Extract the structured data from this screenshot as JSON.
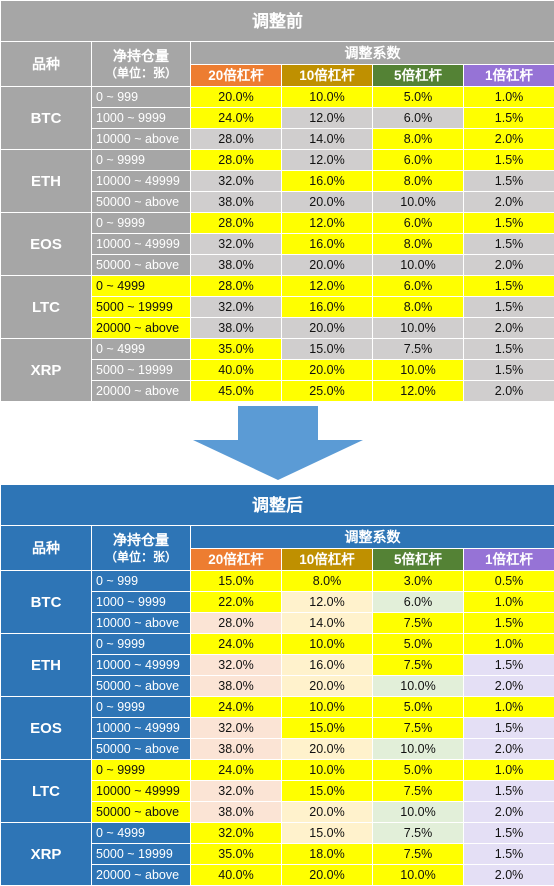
{
  "colors": {
    "before_header_bg": "#a6a6a6",
    "after_header_bg": "#2e75b6",
    "lev20": "#ed7d31",
    "lev10": "#bf9000",
    "lev5": "#548235",
    "lev1": "#9673d6",
    "yellow": "#ffff00",
    "grey_cell": "#d0cece",
    "peach": "#fbe4d5",
    "cream": "#fff2cc",
    "mint": "#e2efd9",
    "lavender": "#e4dff5",
    "arrow": "#5b9bd5"
  },
  "before": {
    "title": "调整前",
    "col_variety": "品种",
    "col_position": "净持仓量",
    "col_position_unit": "（单位：张）",
    "col_coef": "调整系数",
    "levels": [
      "20倍杠杆",
      "10倍杠杆",
      "5倍杠杆",
      "1倍杠杆"
    ],
    "groups": [
      {
        "coin": "BTC",
        "rows": [
          {
            "range": "0 ~ 999",
            "values": [
              "20.0%",
              "10.0%",
              "5.0%",
              "1.0%"
            ]
          },
          {
            "range": "1000 ~ 9999",
            "values": [
              "24.0%",
              "12.0%",
              "6.0%",
              "1.5%"
            ]
          },
          {
            "range": "10000 ~ above",
            "values": [
              "28.0%",
              "14.0%",
              "8.0%",
              "2.0%"
            ]
          }
        ]
      },
      {
        "coin": "ETH",
        "rows": [
          {
            "range": "0 ~ 9999",
            "values": [
              "28.0%",
              "12.0%",
              "6.0%",
              "1.5%"
            ]
          },
          {
            "range": "10000 ~ 49999",
            "values": [
              "32.0%",
              "16.0%",
              "8.0%",
              "1.5%"
            ]
          },
          {
            "range": "50000 ~ above",
            "values": [
              "38.0%",
              "20.0%",
              "10.0%",
              "2.0%"
            ]
          }
        ]
      },
      {
        "coin": "EOS",
        "rows": [
          {
            "range": "0 ~ 9999",
            "values": [
              "28.0%",
              "12.0%",
              "6.0%",
              "1.5%"
            ]
          },
          {
            "range": "10000 ~ 49999",
            "values": [
              "32.0%",
              "16.0%",
              "8.0%",
              "1.5%"
            ]
          },
          {
            "range": "50000 ~ above",
            "values": [
              "38.0%",
              "20.0%",
              "10.0%",
              "2.0%"
            ]
          }
        ]
      },
      {
        "coin": "LTC",
        "rows": [
          {
            "range": "0 ~ 4999",
            "values": [
              "28.0%",
              "12.0%",
              "6.0%",
              "1.5%"
            ]
          },
          {
            "range": "5000 ~ 19999",
            "values": [
              "32.0%",
              "16.0%",
              "8.0%",
              "1.5%"
            ]
          },
          {
            "range": "20000 ~ above",
            "values": [
              "38.0%",
              "20.0%",
              "10.0%",
              "2.0%"
            ]
          }
        ]
      },
      {
        "coin": "XRP",
        "rows": [
          {
            "range": "0 ~ 4999",
            "values": [
              "35.0%",
              "15.0%",
              "7.5%",
              "1.5%"
            ]
          },
          {
            "range": "5000 ~ 19999",
            "values": [
              "40.0%",
              "20.0%",
              "10.0%",
              "1.5%"
            ]
          },
          {
            "range": "20000 ~ above",
            "values": [
              "45.0%",
              "25.0%",
              "12.0%",
              "2.0%"
            ]
          }
        ]
      }
    ]
  },
  "after": {
    "title": "调整后",
    "col_variety": "品种",
    "col_position": "净持仓量",
    "col_position_unit": "（单位：张）",
    "col_coef": "调整系数",
    "levels": [
      "20倍杠杆",
      "10倍杠杆",
      "5倍杠杆",
      "1倍杠杆"
    ],
    "groups": [
      {
        "coin": "BTC",
        "rows": [
          {
            "range": "0 ~ 999",
            "values": [
              "15.0%",
              "8.0%",
              "3.0%",
              "0.5%"
            ]
          },
          {
            "range": "1000 ~ 9999",
            "values": [
              "22.0%",
              "12.0%",
              "6.0%",
              "1.0%"
            ]
          },
          {
            "range": "10000 ~ above",
            "values": [
              "28.0%",
              "14.0%",
              "7.5%",
              "1.5%"
            ]
          }
        ]
      },
      {
        "coin": "ETH",
        "rows": [
          {
            "range": "0 ~ 9999",
            "values": [
              "24.0%",
              "10.0%",
              "5.0%",
              "1.0%"
            ]
          },
          {
            "range": "10000 ~ 49999",
            "values": [
              "32.0%",
              "16.0%",
              "7.5%",
              "1.5%"
            ]
          },
          {
            "range": "50000 ~ above",
            "values": [
              "38.0%",
              "20.0%",
              "10.0%",
              "2.0%"
            ]
          }
        ]
      },
      {
        "coin": "EOS",
        "rows": [
          {
            "range": "0 ~ 9999",
            "values": [
              "24.0%",
              "10.0%",
              "5.0%",
              "1.0%"
            ]
          },
          {
            "range": "10000 ~ 49999",
            "values": [
              "32.0%",
              "15.0%",
              "7.5%",
              "1.5%"
            ]
          },
          {
            "range": "50000 ~ above",
            "values": [
              "38.0%",
              "20.0%",
              "10.0%",
              "2.0%"
            ]
          }
        ]
      },
      {
        "coin": "LTC",
        "rows": [
          {
            "range": "0 ~ 9999",
            "values": [
              "24.0%",
              "10.0%",
              "5.0%",
              "1.0%"
            ]
          },
          {
            "range": "10000 ~ 49999",
            "values": [
              "32.0%",
              "15.0%",
              "7.5%",
              "1.5%"
            ]
          },
          {
            "range": "50000 ~ above",
            "values": [
              "38.0%",
              "20.0%",
              "10.0%",
              "2.0%"
            ]
          }
        ]
      },
      {
        "coin": "XRP",
        "rows": [
          {
            "range": "0 ~ 4999",
            "values": [
              "32.0%",
              "15.0%",
              "7.5%",
              "1.5%"
            ]
          },
          {
            "range": "5000 ~ 19999",
            "values": [
              "35.0%",
              "18.0%",
              "7.5%",
              "1.5%"
            ]
          },
          {
            "range": "20000 ~ above",
            "values": [
              "40.0%",
              "20.0%",
              "10.0%",
              "2.0%"
            ]
          }
        ]
      }
    ]
  }
}
